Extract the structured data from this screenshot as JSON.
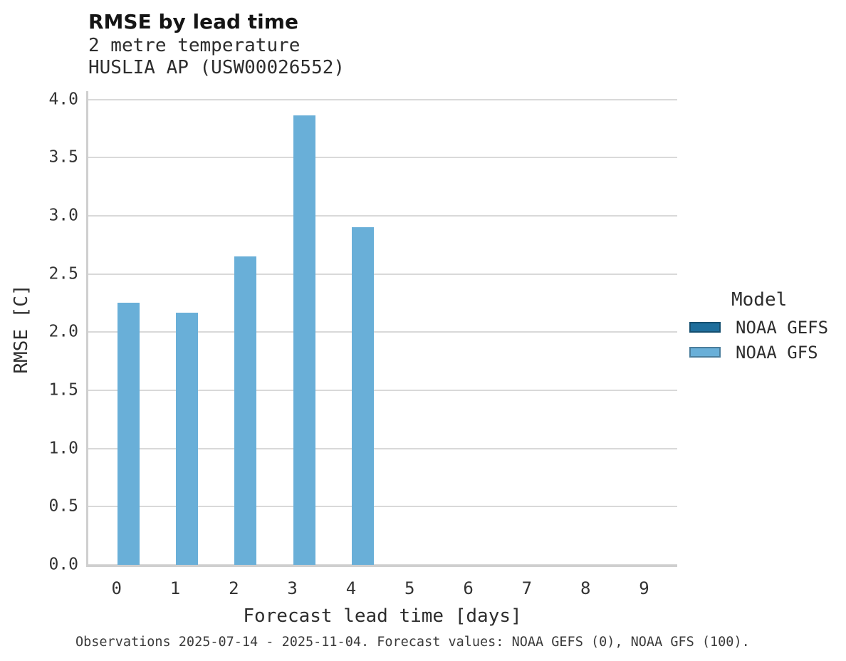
{
  "chart_data": {
    "type": "bar",
    "title": "RMSE by lead time",
    "subtitle_lines": [
      "2 metre temperature",
      "HUSLIA AP (USW00026552)"
    ],
    "xlabel": "Forecast lead time [days]",
    "ylabel": "RMSE [C]",
    "categories": [
      "0",
      "1",
      "2",
      "3",
      "4",
      "5",
      "6",
      "7",
      "8",
      "9"
    ],
    "series": [
      {
        "name": "NOAA GEFS",
        "color": "#1e6e9c",
        "values": [
          null,
          null,
          null,
          null,
          null,
          null,
          null,
          null,
          null,
          null
        ]
      },
      {
        "name": "NOAA GFS",
        "color": "#69afd8",
        "values": [
          2.25,
          2.17,
          2.65,
          3.86,
          2.9,
          null,
          null,
          null,
          null,
          null
        ]
      }
    ],
    "y_ticks": [
      0.0,
      0.5,
      1.0,
      1.5,
      2.0,
      2.5,
      3.0,
      3.5,
      4.0
    ],
    "y_tick_labels": [
      "0.0",
      "0.5",
      "1.0",
      "1.5",
      "2.0",
      "2.5",
      "3.0",
      "3.5",
      "4.0"
    ],
    "ylim": [
      0,
      4.07
    ],
    "grid": "horizontal-only",
    "legend": {
      "title": "Model",
      "position": "right"
    },
    "caption": "Observations 2025-07-14 - 2025-11-04. Forecast values: NOAA GEFS (0), NOAA GFS (100)."
  },
  "colors": {
    "gridline": "#d9d9d9",
    "axis_line": "#cfcfcf",
    "background": "#ffffff"
  }
}
